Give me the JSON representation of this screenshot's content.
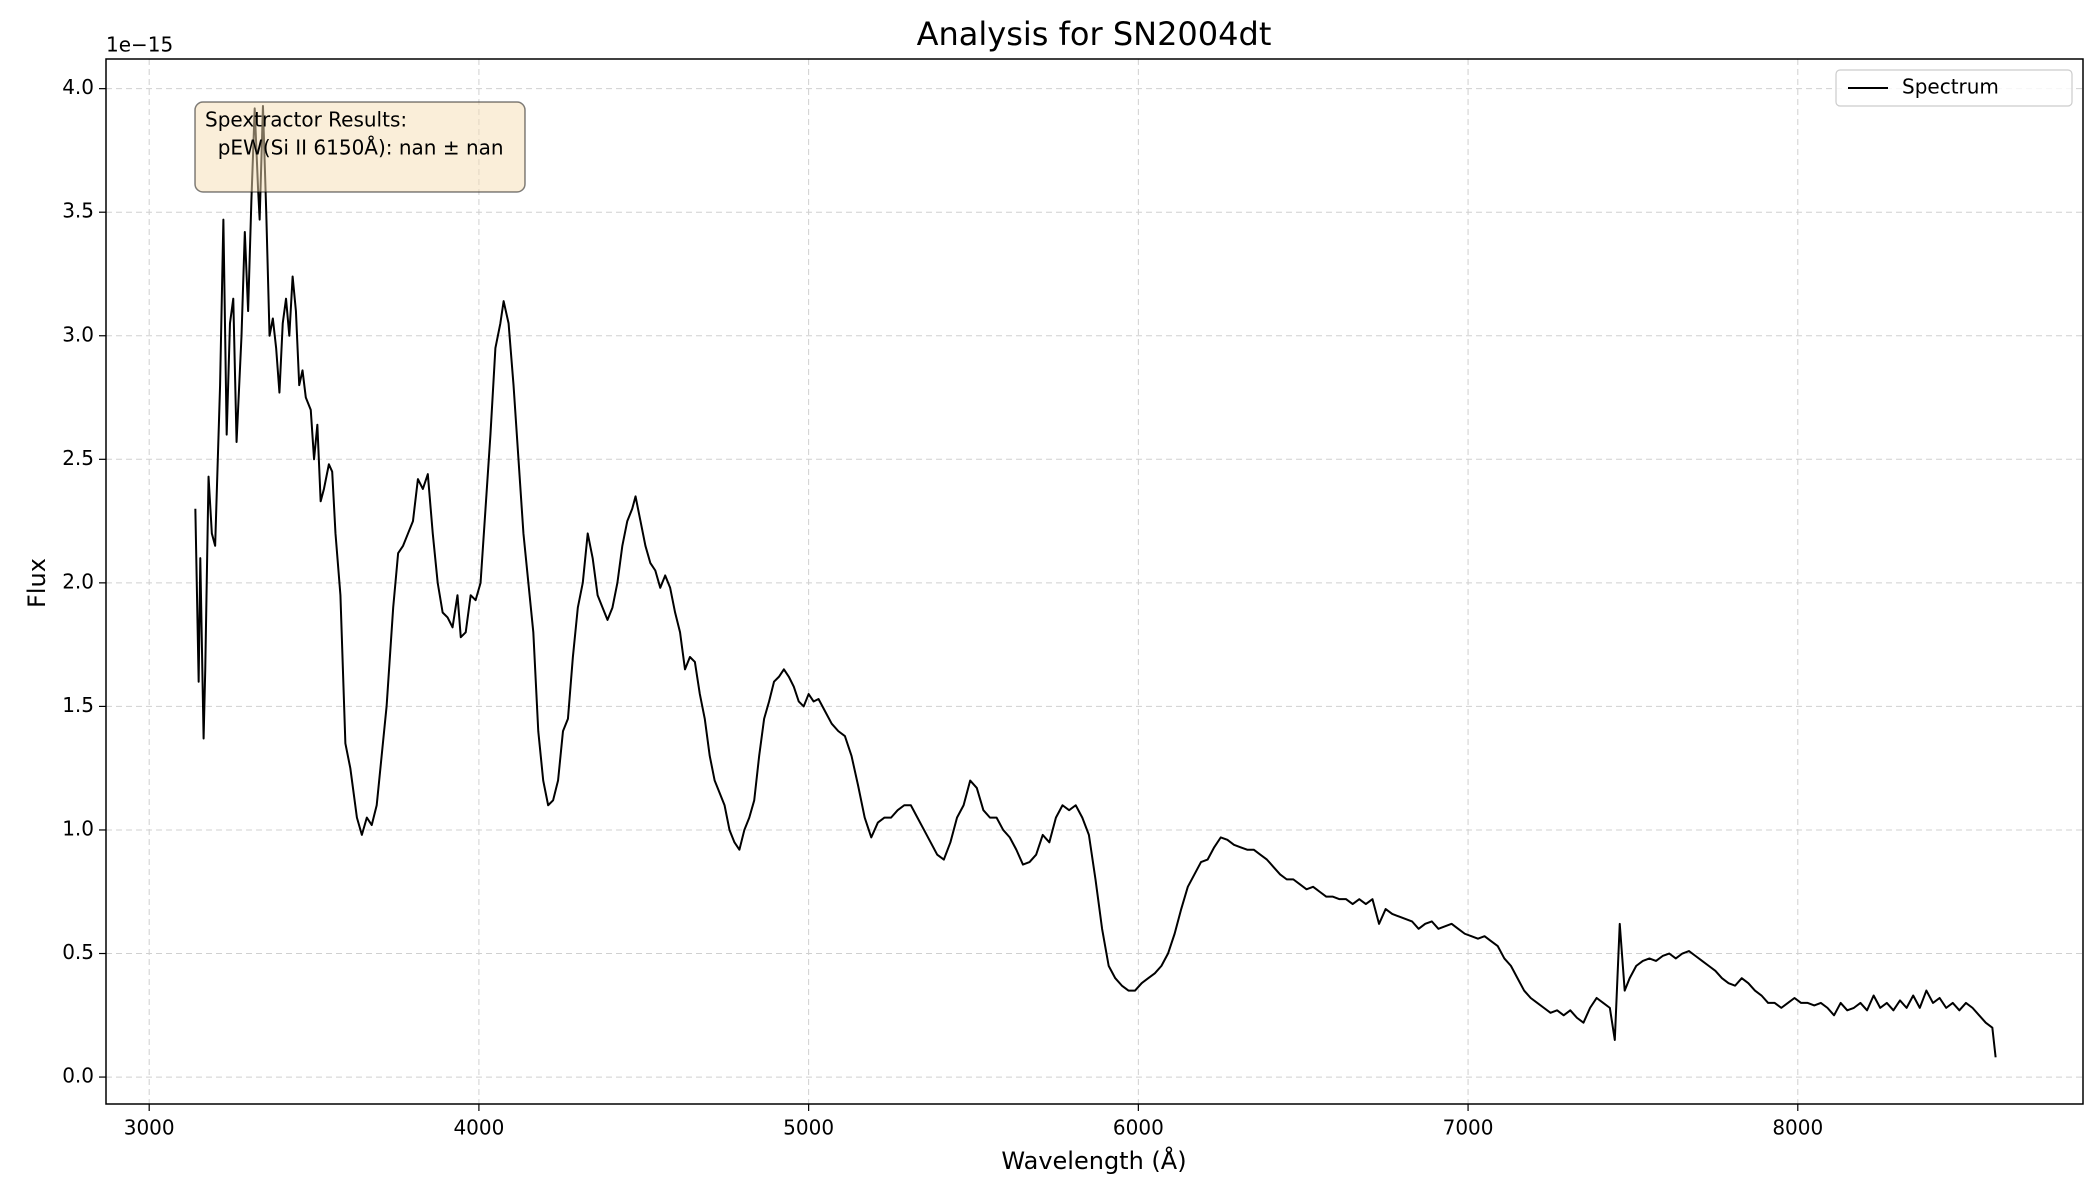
{
  "chart_data": {
    "type": "line",
    "title": "Analysis for SN2004dt",
    "x_label": "Wavelength (Å)",
    "y_label": "Flux",
    "y_offset_label": "1e−15",
    "annotation": [
      "Spextractor Results:",
      "  pEW(Si II 6150Å): nan ± nan"
    ],
    "legend_position": "upper right",
    "grid": true,
    "xlim": [
      2869,
      8865
    ],
    "ylim": [
      -0.109,
      4.12
    ],
    "xticks": [
      3000,
      4000,
      5000,
      6000,
      7000,
      8000
    ],
    "yticks": [
      {
        "value": 0,
        "label": "0.0"
      },
      0.5,
      {
        "value": 1,
        "label": "1.0"
      },
      1.5,
      {
        "value": 2,
        "label": "2.0"
      },
      2.5,
      {
        "value": 3,
        "label": "3.0"
      },
      3.5,
      {
        "value": 4,
        "label": "4.0"
      }
    ],
    "x": [
      3140,
      3145,
      3150,
      3155,
      3165,
      3170,
      3180,
      3190,
      3200,
      3215,
      3225,
      3235,
      3245,
      3255,
      3265,
      3280,
      3290,
      3300,
      3310,
      3320,
      3330,
      3335,
      3345,
      3355,
      3365,
      3375,
      3385,
      3395,
      3405,
      3415,
      3425,
      3435,
      3445,
      3455,
      3465,
      3475,
      3490,
      3500,
      3510,
      3520,
      3530,
      3545,
      3555,
      3565,
      3580,
      3595,
      3610,
      3630,
      3645,
      3660,
      3675,
      3690,
      3705,
      3720,
      3740,
      3755,
      3770,
      3785,
      3800,
      3815,
      3830,
      3845,
      3860,
      3875,
      3890,
      3905,
      3920,
      3935,
      3945,
      3960,
      3975,
      3990,
      4005,
      4020,
      4035,
      4050,
      4065,
      4075,
      4090,
      4105,
      4120,
      4135,
      4150,
      4165,
      4180,
      4195,
      4210,
      4225,
      4240,
      4255,
      4270,
      4285,
      4300,
      4315,
      4330,
      4345,
      4360,
      4375,
      4390,
      4405,
      4420,
      4435,
      4450,
      4465,
      4475,
      4490,
      4505,
      4520,
      4535,
      4550,
      4565,
      4580,
      4595,
      4610,
      4625,
      4640,
      4655,
      4670,
      4685,
      4700,
      4715,
      4730,
      4745,
      4760,
      4775,
      4790,
      4805,
      4820,
      4835,
      4850,
      4865,
      4880,
      4895,
      4910,
      4925,
      4940,
      4955,
      4970,
      4985,
      5000,
      5015,
      5030,
      5050,
      5070,
      5090,
      5110,
      5130,
      5150,
      5170,
      5190,
      5210,
      5230,
      5250,
      5270,
      5290,
      5310,
      5330,
      5350,
      5370,
      5390,
      5410,
      5430,
      5450,
      5470,
      5490,
      5510,
      5530,
      5550,
      5570,
      5590,
      5610,
      5630,
      5650,
      5670,
      5690,
      5710,
      5730,
      5750,
      5770,
      5790,
      5810,
      5830,
      5850,
      5870,
      5890,
      5910,
      5930,
      5950,
      5970,
      5990,
      6010,
      6030,
      6050,
      6070,
      6090,
      6110,
      6130,
      6150,
      6170,
      6190,
      6210,
      6230,
      6250,
      6270,
      6290,
      6310,
      6330,
      6350,
      6370,
      6390,
      6410,
      6430,
      6450,
      6470,
      6490,
      6510,
      6530,
      6550,
      6570,
      6590,
      6610,
      6630,
      6650,
      6670,
      6690,
      6710,
      6730,
      6750,
      6770,
      6790,
      6810,
      6830,
      6850,
      6870,
      6890,
      6910,
      6930,
      6950,
      6970,
      6990,
      7010,
      7030,
      7050,
      7070,
      7090,
      7110,
      7130,
      7150,
      7170,
      7190,
      7210,
      7230,
      7250,
      7270,
      7290,
      7310,
      7330,
      7350,
      7370,
      7390,
      7410,
      7430,
      7445,
      7460,
      7475,
      7490,
      7510,
      7530,
      7550,
      7570,
      7590,
      7610,
      7630,
      7650,
      7670,
      7690,
      7710,
      7730,
      7750,
      7770,
      7790,
      7810,
      7830,
      7850,
      7870,
      7890,
      7910,
      7930,
      7950,
      7970,
      7990,
      8010,
      8030,
      8050,
      8070,
      8090,
      8110,
      8130,
      8150,
      8170,
      8190,
      8210,
      8230,
      8250,
      8270,
      8290,
      8310,
      8330,
      8350,
      8370,
      8390,
      8410,
      8430,
      8450,
      8470,
      8490,
      8510,
      8530,
      8550,
      8570,
      8590,
      8600
    ],
    "series": [
      {
        "name": "Spectrum",
        "color": "#000000",
        "values": [
          2.3,
          1.95,
          1.6,
          2.1,
          1.37,
          1.65,
          2.43,
          2.2,
          2.15,
          2.8,
          3.47,
          2.6,
          3.05,
          3.15,
          2.57,
          3.0,
          3.42,
          3.1,
          3.55,
          3.92,
          3.6,
          3.47,
          3.93,
          3.5,
          3.0,
          3.07,
          2.95,
          2.77,
          3.05,
          3.15,
          3.0,
          3.24,
          3.1,
          2.8,
          2.86,
          2.75,
          2.7,
          2.5,
          2.64,
          2.33,
          2.38,
          2.48,
          2.45,
          2.2,
          1.95,
          1.35,
          1.25,
          1.05,
          0.98,
          1.05,
          1.02,
          1.1,
          1.3,
          1.5,
          1.9,
          2.12,
          2.15,
          2.2,
          2.25,
          2.42,
          2.38,
          2.44,
          2.2,
          2.0,
          1.88,
          1.86,
          1.82,
          1.95,
          1.78,
          1.8,
          1.95,
          1.93,
          2.0,
          2.3,
          2.6,
          2.95,
          3.05,
          3.14,
          3.05,
          2.8,
          2.5,
          2.2,
          2.0,
          1.8,
          1.4,
          1.2,
          1.1,
          1.12,
          1.2,
          1.4,
          1.45,
          1.7,
          1.9,
          2.0,
          2.2,
          2.1,
          1.95,
          1.9,
          1.85,
          1.9,
          2.0,
          2.15,
          2.25,
          2.3,
          2.35,
          2.25,
          2.15,
          2.08,
          2.05,
          1.98,
          2.03,
          1.98,
          1.88,
          1.8,
          1.65,
          1.7,
          1.68,
          1.55,
          1.45,
          1.3,
          1.2,
          1.15,
          1.1,
          1.0,
          0.95,
          0.92,
          1.0,
          1.05,
          1.12,
          1.3,
          1.45,
          1.52,
          1.6,
          1.62,
          1.65,
          1.62,
          1.58,
          1.52,
          1.5,
          1.55,
          1.52,
          1.53,
          1.48,
          1.43,
          1.4,
          1.38,
          1.3,
          1.18,
          1.05,
          0.97,
          1.03,
          1.05,
          1.05,
          1.08,
          1.1,
          1.1,
          1.05,
          1.0,
          0.95,
          0.9,
          0.88,
          0.95,
          1.05,
          1.1,
          1.2,
          1.17,
          1.08,
          1.05,
          1.05,
          1.0,
          0.97,
          0.92,
          0.86,
          0.87,
          0.9,
          0.98,
          0.95,
          1.05,
          1.1,
          1.08,
          1.1,
          1.05,
          0.98,
          0.8,
          0.6,
          0.45,
          0.4,
          0.37,
          0.35,
          0.35,
          0.38,
          0.4,
          0.42,
          0.45,
          0.5,
          0.58,
          0.68,
          0.77,
          0.82,
          0.87,
          0.88,
          0.93,
          0.97,
          0.96,
          0.94,
          0.93,
          0.92,
          0.92,
          0.9,
          0.88,
          0.85,
          0.82,
          0.8,
          0.8,
          0.78,
          0.76,
          0.77,
          0.75,
          0.73,
          0.73,
          0.72,
          0.72,
          0.7,
          0.72,
          0.7,
          0.72,
          0.62,
          0.68,
          0.66,
          0.65,
          0.64,
          0.63,
          0.6,
          0.62,
          0.63,
          0.6,
          0.61,
          0.62,
          0.6,
          0.58,
          0.57,
          0.56,
          0.57,
          0.55,
          0.53,
          0.48,
          0.45,
          0.4,
          0.35,
          0.32,
          0.3,
          0.28,
          0.26,
          0.27,
          0.25,
          0.27,
          0.24,
          0.22,
          0.28,
          0.32,
          0.3,
          0.28,
          0.15,
          0.62,
          0.35,
          0.4,
          0.45,
          0.47,
          0.48,
          0.47,
          0.49,
          0.5,
          0.48,
          0.5,
          0.51,
          0.49,
          0.47,
          0.45,
          0.43,
          0.4,
          0.38,
          0.37,
          0.4,
          0.38,
          0.35,
          0.33,
          0.3,
          0.3,
          0.28,
          0.3,
          0.32,
          0.3,
          0.3,
          0.29,
          0.3,
          0.28,
          0.25,
          0.3,
          0.27,
          0.28,
          0.3,
          0.27,
          0.33,
          0.28,
          0.3,
          0.27,
          0.31,
          0.28,
          0.33,
          0.28,
          0.35,
          0.3,
          0.32,
          0.28,
          0.3,
          0.27,
          0.3,
          0.28,
          0.25,
          0.22,
          0.2,
          0.08
        ]
      }
    ]
  }
}
